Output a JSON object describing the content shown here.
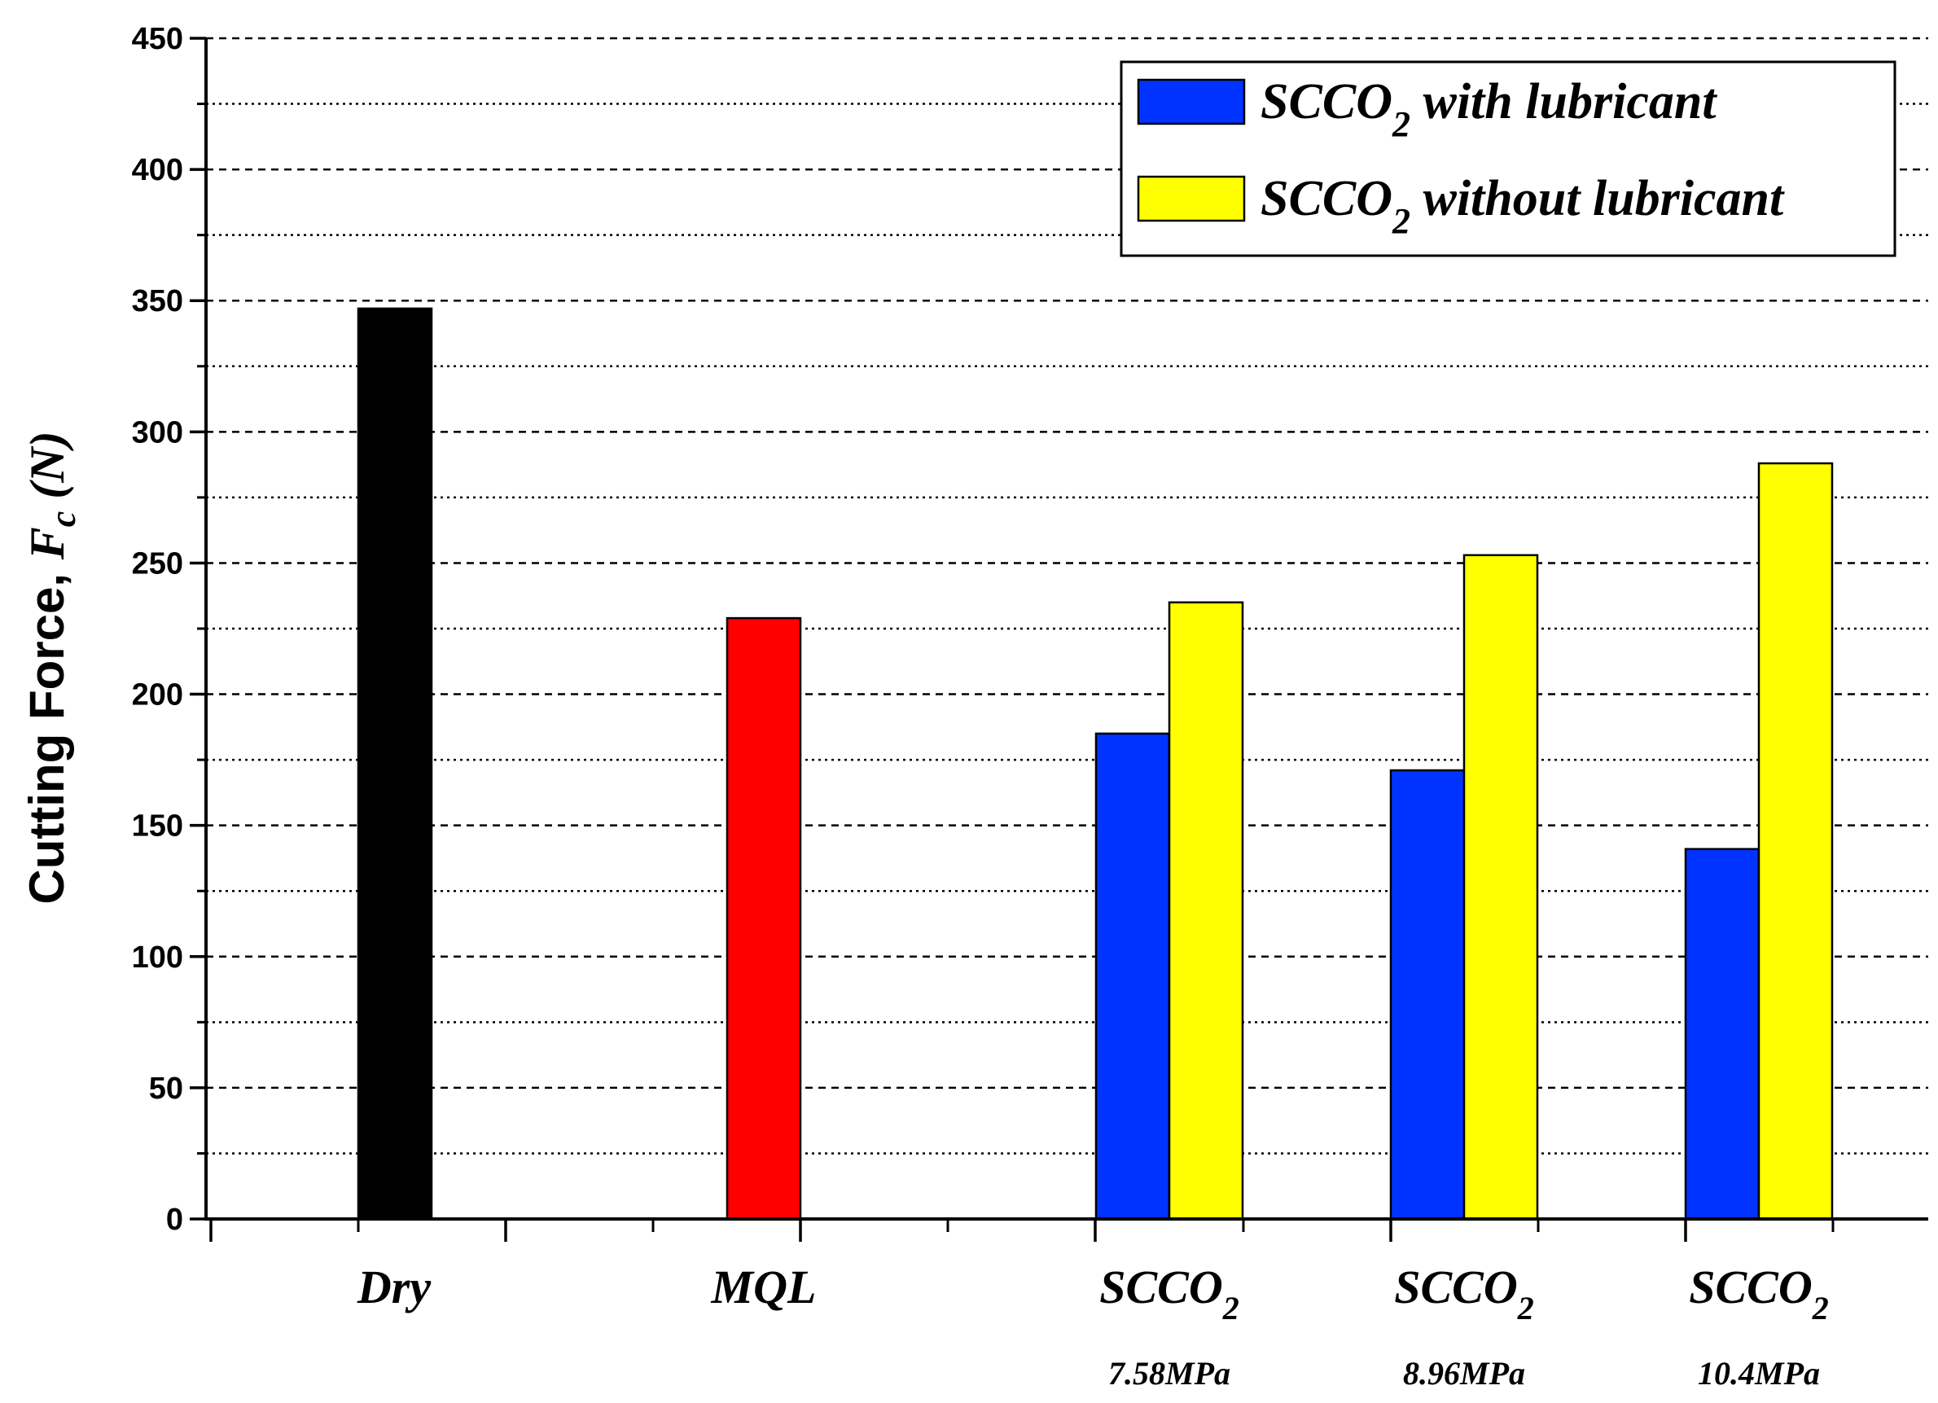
{
  "chart_data": {
    "type": "bar",
    "ylabel": {
      "main": "Cutting Force, ",
      "symbol": "F",
      "subscript": "c",
      "unit": " (N)"
    },
    "ylim": [
      0,
      450
    ],
    "yticks": [
      0,
      50,
      100,
      150,
      200,
      250,
      300,
      350,
      400,
      450
    ],
    "grid": true,
    "legend_position": "top-right",
    "categories": [
      {
        "label": "Dry",
        "sub": "",
        "pressure": ""
      },
      {
        "label": "MQL",
        "sub": "",
        "pressure": ""
      },
      {
        "label": "SCCO",
        "sub": "2",
        "pressure": "7.58MPa"
      },
      {
        "label": "SCCO",
        "sub": "2",
        "pressure": "8.96MPa"
      },
      {
        "label": "SCCO",
        "sub": "2",
        "pressure": "10.4MPa"
      }
    ],
    "single_bars": [
      {
        "category": "Dry",
        "value": 347,
        "color": "#000000"
      },
      {
        "category": "MQL",
        "value": 229,
        "color": "#ff0000"
      }
    ],
    "series": [
      {
        "name": "SCCO2 with lubricant",
        "legend_prefix": "SCCO",
        "legend_sub": "2",
        "legend_suffix": " with lubricant",
        "color": "#0033ff",
        "values": [
          null,
          null,
          185,
          171,
          141
        ]
      },
      {
        "name": "SCCO2 without lubricant",
        "legend_prefix": "SCCO",
        "legend_sub": "2",
        "legend_suffix": " without lubricant",
        "color": "#ffff00",
        "values": [
          null,
          null,
          235,
          253,
          288
        ]
      }
    ]
  }
}
